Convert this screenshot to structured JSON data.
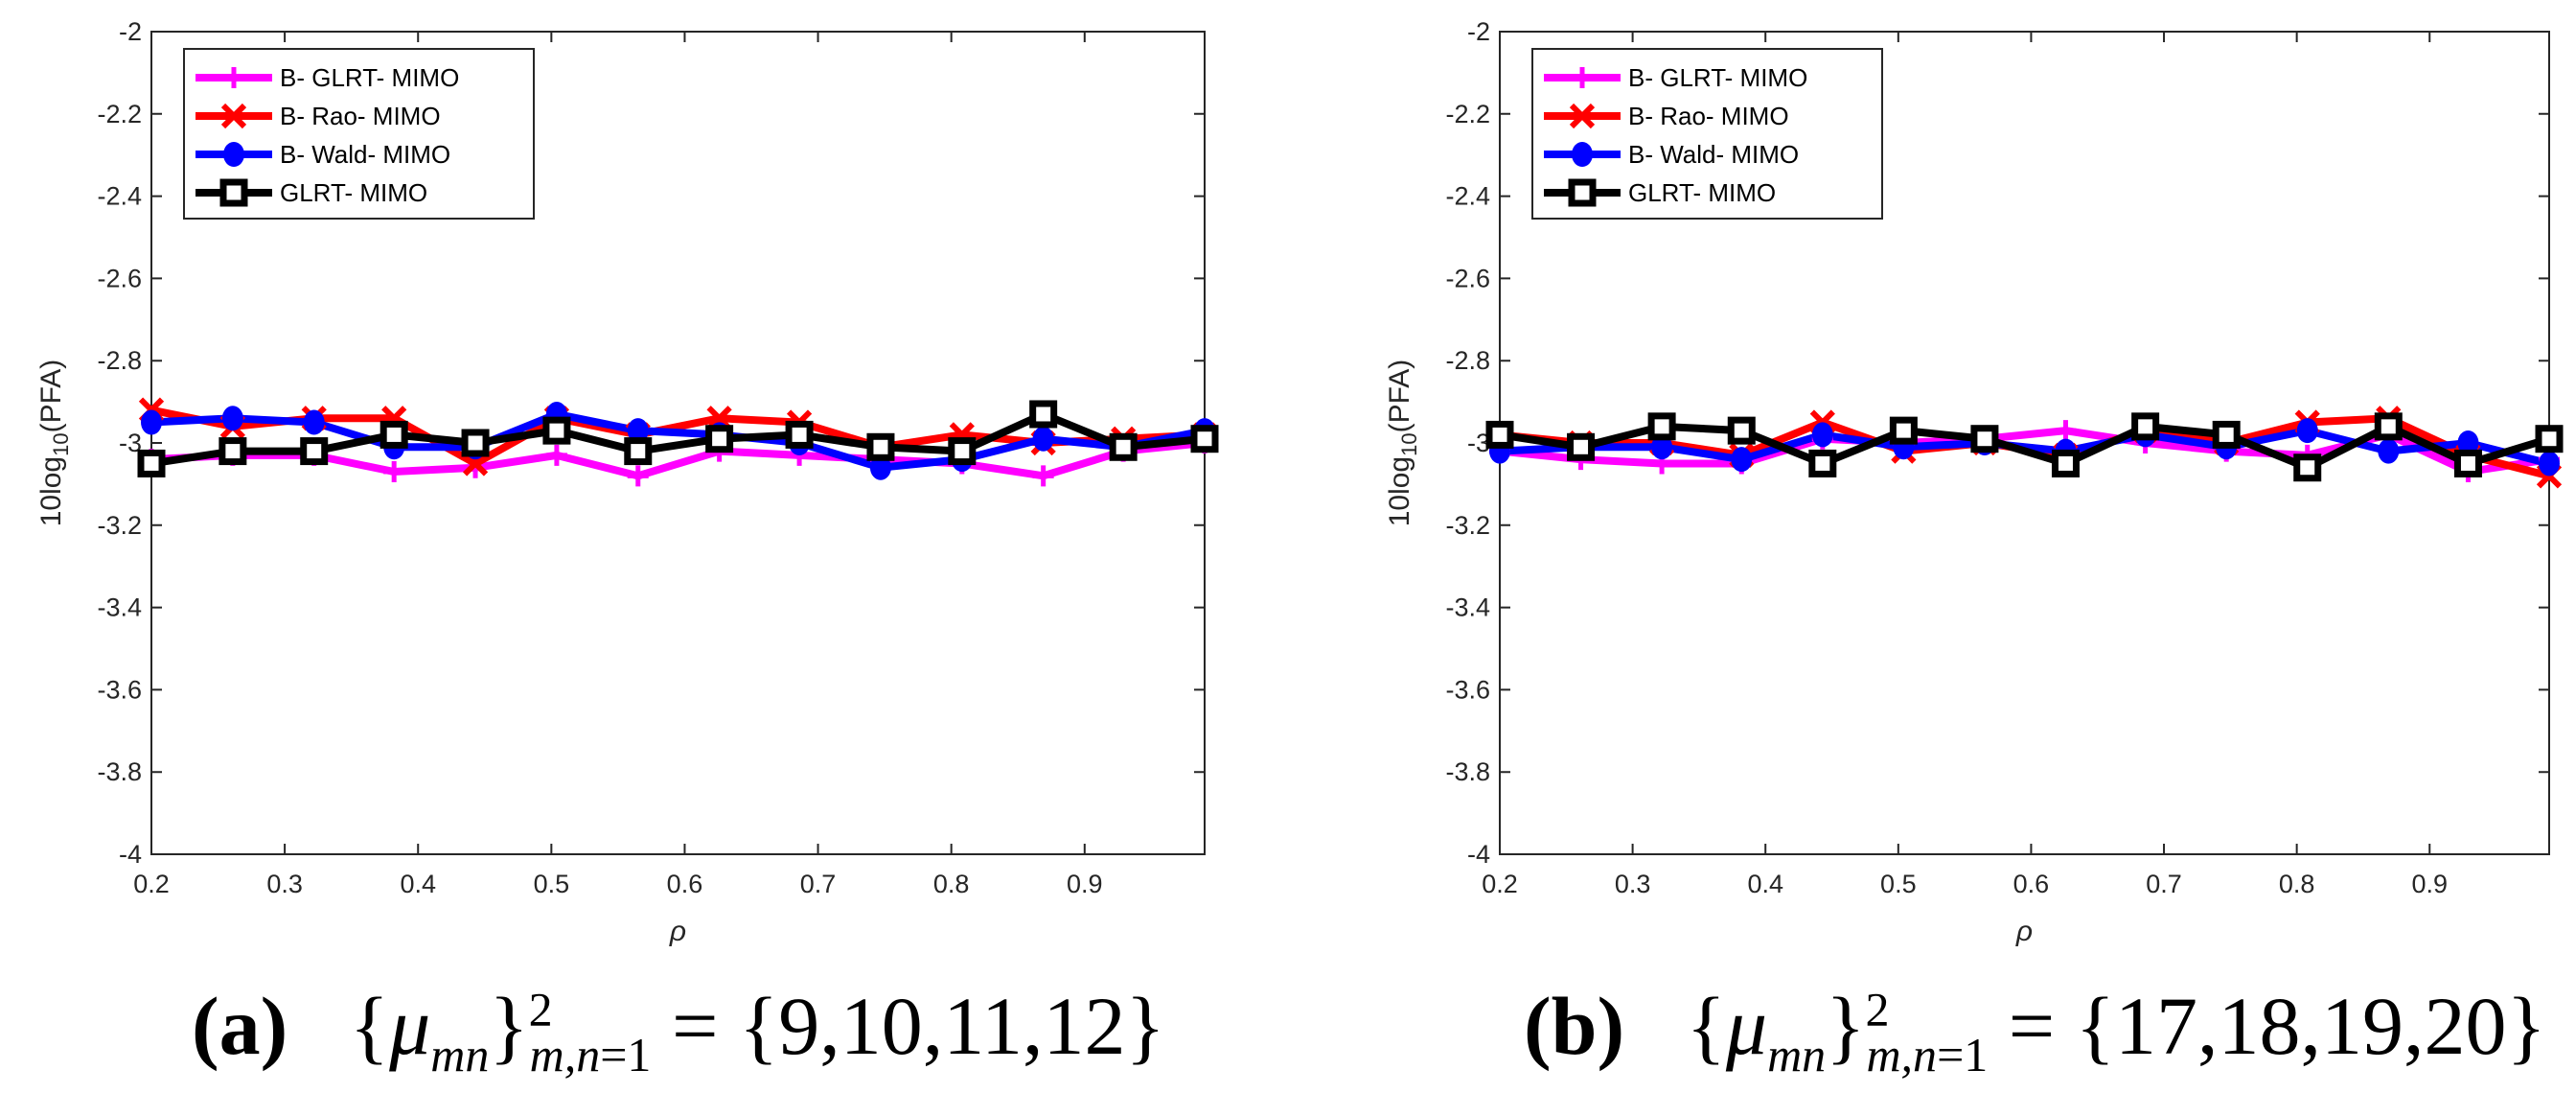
{
  "chart_data": [
    {
      "type": "line",
      "panel": "(a)",
      "caption": "{μmn}²m,n=1 = {9,10,11,12}",
      "caption_parts": {
        "label": "(a)",
        "set": "{9,10,11,12}"
      },
      "xlabel": "ρ",
      "ylabel": "10log10(PFA)",
      "xlim": [
        0.2,
        0.99
      ],
      "ylim": [
        -4,
        -2
      ],
      "xticks": [
        "0.2",
        "0.3",
        "0.4",
        "0.5",
        "0.6",
        "0.7",
        "0.8",
        "0.9"
      ],
      "yticks": [
        "-2",
        "-2.2",
        "-2.4",
        "-2.6",
        "-2.8",
        "-3",
        "-3.2",
        "-3.4",
        "-3.6",
        "-3.8",
        "-4"
      ],
      "legend_position": "top-left",
      "grid": false,
      "x": [
        0.2,
        0.261,
        0.322,
        0.382,
        0.443,
        0.504,
        0.565,
        0.626,
        0.686,
        0.747,
        0.808,
        0.869,
        0.929,
        0.99
      ],
      "series": [
        {
          "name": "B- GLRT- MIMO",
          "color": "#ff00ff",
          "marker": "plus",
          "values": [
            -3.04,
            -3.03,
            -3.03,
            -3.07,
            -3.06,
            -3.03,
            -3.08,
            -3.02,
            -3.03,
            -3.04,
            -3.05,
            -3.08,
            -3.02,
            -3.0
          ]
        },
        {
          "name": "B- Rao- MIMO",
          "color": "#ff0000",
          "marker": "x",
          "values": [
            -2.92,
            -2.96,
            -2.94,
            -2.94,
            -3.05,
            -2.94,
            -2.98,
            -2.94,
            -2.95,
            -3.01,
            -2.98,
            -3.0,
            -2.99,
            -2.98
          ]
        },
        {
          "name": "B- Wald- MIMO",
          "color": "#0000ff",
          "marker": "circle",
          "values": [
            -2.95,
            -2.94,
            -2.95,
            -3.01,
            -3.01,
            -2.93,
            -2.97,
            -2.98,
            -3.0,
            -3.06,
            -3.04,
            -2.99,
            -3.01,
            -2.97
          ]
        },
        {
          "name": "GLRT- MIMO",
          "color": "#000000",
          "marker": "square",
          "values": [
            -3.05,
            -3.02,
            -3.02,
            -2.98,
            -3.0,
            -2.97,
            -3.02,
            -2.99,
            -2.98,
            -3.01,
            -3.02,
            -2.93,
            -3.01,
            -2.99
          ]
        }
      ]
    },
    {
      "type": "line",
      "panel": "(b)",
      "caption": "{μmn}²m,n=1 = {17,18,19,20}",
      "caption_parts": {
        "label": "(b)",
        "set": "{17,18,19,20}"
      },
      "xlabel": "ρ",
      "ylabel": "10log10(PFA)",
      "xlim": [
        0.2,
        0.99
      ],
      "ylim": [
        -4,
        -2
      ],
      "xticks": [
        "0.2",
        "0.3",
        "0.4",
        "0.5",
        "0.6",
        "0.7",
        "0.8",
        "0.9"
      ],
      "yticks": [
        "-2",
        "-2.2",
        "-2.4",
        "-2.6",
        "-2.8",
        "-3",
        "-3.2",
        "-3.4",
        "-3.6",
        "-3.8",
        "-4"
      ],
      "legend_position": "top-left",
      "grid": false,
      "x": [
        0.2,
        0.261,
        0.322,
        0.382,
        0.443,
        0.504,
        0.565,
        0.626,
        0.686,
        0.747,
        0.808,
        0.869,
        0.929,
        0.99
      ],
      "series": [
        {
          "name": "B- GLRT- MIMO",
          "color": "#ff00ff",
          "marker": "plus",
          "values": [
            -3.02,
            -3.04,
            -3.05,
            -3.05,
            -2.99,
            -3.0,
            -2.99,
            -2.97,
            -3.0,
            -3.02,
            -3.03,
            -2.98,
            -3.07,
            -3.04
          ]
        },
        {
          "name": "B- Rao- MIMO",
          "color": "#ff0000",
          "marker": "x",
          "values": [
            -2.98,
            -3.0,
            -3.0,
            -3.03,
            -2.95,
            -3.02,
            -3.0,
            -3.03,
            -2.97,
            -3.0,
            -2.95,
            -2.94,
            -3.03,
            -3.08
          ]
        },
        {
          "name": "B- Wald- MIMO",
          "color": "#0000ff",
          "marker": "circle",
          "values": [
            -3.02,
            -3.01,
            -3.01,
            -3.04,
            -2.98,
            -3.01,
            -3.0,
            -3.02,
            -2.98,
            -3.01,
            -2.97,
            -3.02,
            -3.0,
            -3.05
          ]
        },
        {
          "name": "GLRT- MIMO",
          "color": "#000000",
          "marker": "square",
          "values": [
            -2.98,
            -3.01,
            -2.96,
            -2.97,
            -3.05,
            -2.97,
            -2.99,
            -3.05,
            -2.96,
            -2.98,
            -3.06,
            -2.96,
            -3.05,
            -2.99
          ]
        }
      ]
    }
  ]
}
